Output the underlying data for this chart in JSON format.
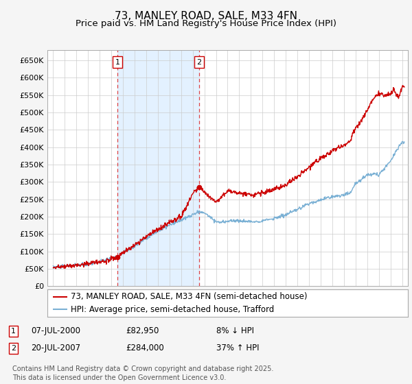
{
  "title": "73, MANLEY ROAD, SALE, M33 4FN",
  "subtitle": "Price paid vs. HM Land Registry's House Price Index (HPI)",
  "ylabel_ticks": [
    "£0",
    "£50K",
    "£100K",
    "£150K",
    "£200K",
    "£250K",
    "£300K",
    "£350K",
    "£400K",
    "£450K",
    "£500K",
    "£550K",
    "£600K",
    "£650K"
  ],
  "ylim": [
    0,
    680000
  ],
  "xlim_start": 1994.5,
  "xlim_end": 2025.5,
  "sale1_date": 2000.52,
  "sale1_price": 82950,
  "sale2_date": 2007.55,
  "sale2_price": 284000,
  "legend_line1": "73, MANLEY ROAD, SALE, M33 4FN (semi-detached house)",
  "legend_line2": "HPI: Average price, semi-detached house, Trafford",
  "footer": "Contains HM Land Registry data © Crown copyright and database right 2025.\nThis data is licensed under the Open Government Licence v3.0.",
  "bg_color": "#f5f5f5",
  "plot_bg_color": "#ffffff",
  "red_line_color": "#cc0000",
  "blue_line_color": "#7ab0d4",
  "shade_color": "#ddeeff",
  "grid_color": "#cccccc",
  "dashed_line_color": "#dd4444",
  "box_border_color": "#cc0000",
  "title_fontsize": 11,
  "subtitle_fontsize": 9.5,
  "tick_fontsize": 8,
  "legend_fontsize": 8.5,
  "annotation_fontsize": 8.5,
  "footer_fontsize": 7
}
